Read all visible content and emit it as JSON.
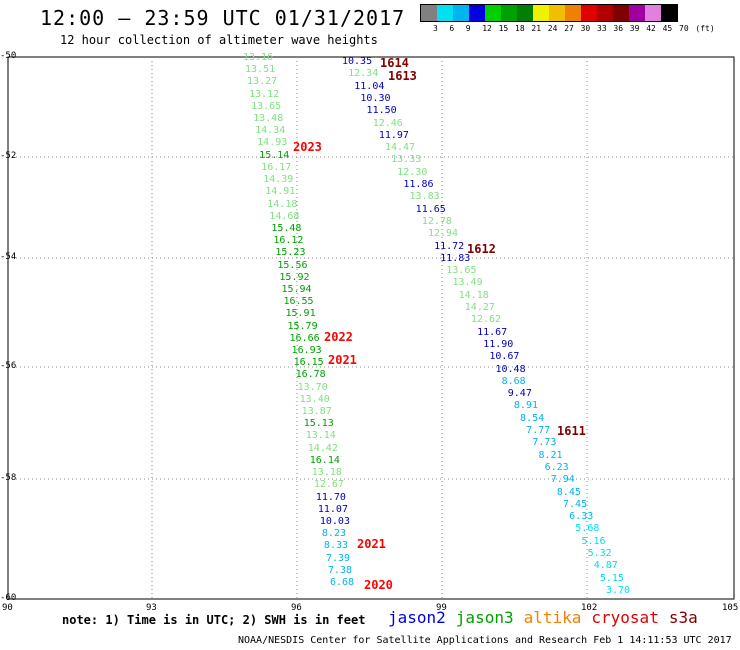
{
  "header": {
    "title": "12:00 – 23:59 UTC 01/31/2017",
    "subtitle": "12 hour collection of altimeter wave heights"
  },
  "legend": {
    "colors": [
      "#808080",
      "#00e0f0",
      "#00b4f0",
      "#0000e0",
      "#00d000",
      "#00a000",
      "#008000",
      "#f0f000",
      "#f0c000",
      "#f08000",
      "#e00000",
      "#b00000",
      "#800000",
      "#a000a0",
      "#e080e0",
      "#000000"
    ],
    "labels": [
      "3",
      "6",
      "9",
      "12",
      "15",
      "18",
      "21",
      "24",
      "27",
      "30",
      "33",
      "36",
      "39",
      "42",
      "45",
      "70",
      "(ft)"
    ]
  },
  "axes": {
    "y_labels": [
      "-50",
      "-52",
      "-54",
      "-56",
      "-58",
      "-60"
    ],
    "x_labels": [
      "90",
      "93",
      "96",
      "99",
      "102",
      "105"
    ]
  },
  "passes": [
    {
      "label": "1614",
      "color": "#800000"
    },
    {
      "label": "1613",
      "color": "#800000"
    },
    {
      "label": "2023",
      "color": "#ff0000"
    },
    {
      "label": "1612",
      "color": "#800000"
    },
    {
      "label": "2022",
      "color": "#ff0000"
    },
    {
      "label": "2021",
      "color": "#ff0000"
    },
    {
      "label": "1611",
      "color": "#800000"
    },
    {
      "label": "2021",
      "color": "#ff0000"
    },
    {
      "label": "2020",
      "color": "#ff0000"
    }
  ],
  "track_left": {
    "values": [
      "13.16",
      "13.51",
      "13.27",
      "13.12",
      "13.65",
      "13.48",
      "14.34",
      "14.93",
      "15.14",
      "16.17",
      "14.39",
      "14.91",
      "14.18",
      "14.68",
      "15.48",
      "16.12",
      "15.23",
      "15.56",
      "15.92",
      "15.94",
      "16.55",
      "15.91",
      "15.79",
      "16.66",
      "16.93",
      "16.15",
      "16.78",
      "13.70",
      "13.40",
      "13.87",
      "15.13",
      "13.14",
      "14.42",
      "16.14",
      "13.18",
      "12.67",
      "11.70",
      "11.07",
      "10.03",
      "8.23",
      "8.33",
      "7.39",
      "7.38",
      "6.68"
    ],
    "colors": [
      "#80e080",
      "#80e080",
      "#80e080",
      "#80e080",
      "#80e080",
      "#80e080",
      "#80e080",
      "#80e080",
      "#00a000",
      "#80e080",
      "#80e080",
      "#80e080",
      "#80e080",
      "#80e080",
      "#00a000",
      "#00a000",
      "#00a000",
      "#00a000",
      "#00a000",
      "#00a000",
      "#00a000",
      "#00a000",
      "#00a000",
      "#00a000",
      "#00a000",
      "#00a000",
      "#00a000",
      "#80e080",
      "#80e080",
      "#80e080",
      "#00a000",
      "#80e080",
      "#80e080",
      "#00a000",
      "#80e080",
      "#80e080",
      "#0000c0",
      "#0000c0",
      "#0000c0",
      "#00b4f0",
      "#00b4f0",
      "#00b4f0",
      "#00b4f0",
      "#00b4f0"
    ]
  },
  "track_right": {
    "values": [
      "10.35",
      "12.34",
      "11.04",
      "10.30",
      "11.50",
      "12.46",
      "11.97",
      "14.47",
      "13.33",
      "12.30",
      "11.86",
      "13.83",
      "11.65",
      "12.78",
      "12.94",
      "11.72",
      "11.83",
      "13.65",
      "13.49",
      "14.18",
      "14.27",
      "12.62",
      "11.67",
      "11.90",
      "10.67",
      "10.48",
      "8.68",
      "9.47",
      "8.91",
      "8.54",
      "7.77",
      "7.73",
      "8.21",
      "6.23",
      "7.94",
      "8.45",
      "7.45",
      "6.33",
      "5.68",
      "5.16",
      "5.32",
      "4.87",
      "5.15",
      "3.70"
    ],
    "colors": [
      "#0000c0",
      "#80e080",
      "#0000c0",
      "#0000c0",
      "#0000c0",
      "#80e080",
      "#0000c0",
      "#80e080",
      "#80e080",
      "#80e080",
      "#0000c0",
      "#80e080",
      "#0000c0",
      "#80e080",
      "#80e080",
      "#0000c0",
      "#0000c0",
      "#80e080",
      "#80e080",
      "#80e080",
      "#80e080",
      "#80e080",
      "#0000c0",
      "#0000c0",
      "#0000c0",
      "#0000c0",
      "#00b4f0",
      "#0000c0",
      "#00b4f0",
      "#00b4f0",
      "#00b4f0",
      "#00b4f0",
      "#00b4f0",
      "#00b4f0",
      "#00b4f0",
      "#00b4f0",
      "#00b4f0",
      "#00b4f0",
      "#00e0f0",
      "#00e0f0",
      "#00e0f0",
      "#00e0f0",
      "#00e0f0",
      "#00e0f0"
    ]
  },
  "footer": {
    "note": "note: 1) Time is in UTC; 2) SWH is in feet",
    "satellites": [
      {
        "name": "jason2",
        "color": "#0000e0"
      },
      {
        "name": "jason3",
        "color": "#00a000"
      },
      {
        "name": "altika",
        "color": "#f08000"
      },
      {
        "name": "cryosat",
        "color": "#e00000"
      },
      {
        "name": "s3a",
        "color": "#800000"
      }
    ],
    "credit": "NOAA/NESDIS Center for Satellite Applications and Research    Feb  1 14:11:53 UTC 2017"
  }
}
